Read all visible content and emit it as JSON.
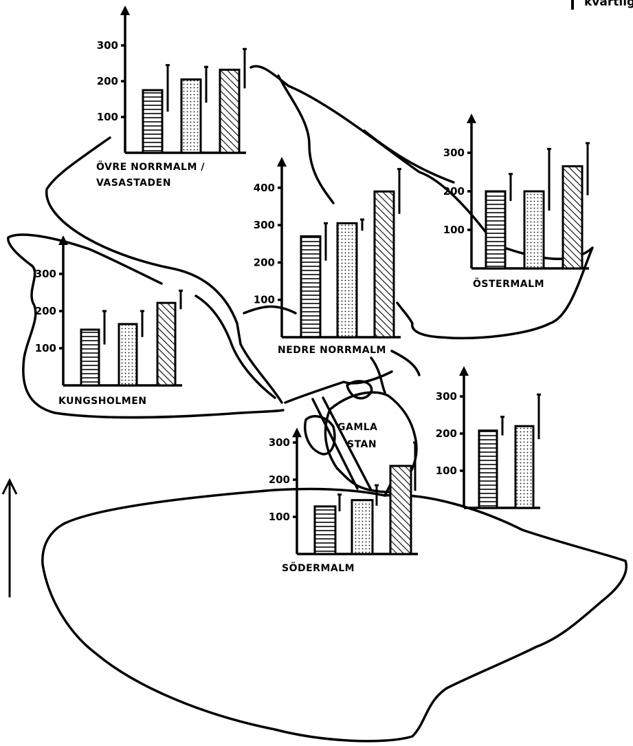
{
  "legend": {
    "text": "kvartilgränser"
  },
  "chart_data": [
    {
      "type": "bar",
      "name_label": "ÖVRE NORRMALM /",
      "name_label2": "VASASTADEN",
      "yticks": [
        100,
        200,
        300
      ],
      "ylim": [
        0,
        340
      ],
      "bars": [
        {
          "pattern": "horizontal-lines",
          "value": 175,
          "q_low": 115,
          "q_high": 245
        },
        {
          "pattern": "dots",
          "value": 205,
          "q_low": 140,
          "q_high": 240
        },
        {
          "pattern": "diagonal-hatch",
          "value": 232,
          "q_low": 180,
          "q_high": 290
        }
      ]
    },
    {
      "type": "bar",
      "name_label": "NEDRE NORRMALM",
      "name_label2": "",
      "yticks": [
        100,
        200,
        300,
        400
      ],
      "ylim": [
        0,
        450
      ],
      "bars": [
        {
          "pattern": "horizontal-lines",
          "value": 270,
          "q_low": 205,
          "q_high": 305
        },
        {
          "pattern": "dots",
          "value": 305,
          "q_low": 285,
          "q_high": 315
        },
        {
          "pattern": "diagonal-hatch",
          "value": 390,
          "q_low": 330,
          "q_high": 450
        }
      ]
    },
    {
      "type": "bar",
      "name_label": "ÖSTERMALM",
      "name_label2": "",
      "yticks": [
        100,
        200,
        300
      ],
      "ylim": [
        0,
        350
      ],
      "bars": [
        {
          "pattern": "horizontal-lines",
          "value": 200,
          "q_low": 175,
          "q_high": 245
        },
        {
          "pattern": "dots",
          "value": 200,
          "q_low": 150,
          "q_high": 310
        },
        {
          "pattern": "diagonal-hatch",
          "value": 265,
          "q_low": 190,
          "q_high": 325
        }
      ]
    },
    {
      "type": "bar",
      "name_label": "KUNGSHOLMEN",
      "name_label2": "",
      "yticks": [
        100,
        200,
        300
      ],
      "ylim": [
        0,
        310
      ],
      "bars": [
        {
          "pattern": "horizontal-lines",
          "value": 150,
          "q_low": 110,
          "q_high": 200
        },
        {
          "pattern": "dots",
          "value": 165,
          "q_low": 130,
          "q_high": 200
        },
        {
          "pattern": "diagonal-hatch",
          "value": 222,
          "q_low": 205,
          "q_high": 255
        }
      ]
    },
    {
      "type": "bar",
      "name_label": "GAMLA",
      "name_label2": "STAN",
      "yticks": [
        100,
        200,
        300
      ],
      "ylim": [
        0,
        320
      ],
      "bars": [
        {
          "pattern": "horizontal-lines",
          "value": 208,
          "q_low": 195,
          "q_high": 245
        },
        {
          "pattern": "dots",
          "value": 220,
          "q_low": 185,
          "q_high": 305
        }
      ]
    },
    {
      "type": "bar",
      "name_label": "SÖDERMALM",
      "name_label2": "",
      "yticks": [
        100,
        200,
        300
      ],
      "ylim": [
        0,
        340
      ],
      "bars": [
        {
          "pattern": "horizontal-lines",
          "value": 128,
          "q_low": 115,
          "q_high": 160
        },
        {
          "pattern": "dots",
          "value": 145,
          "q_low": 130,
          "q_high": 185
        },
        {
          "pattern": "diagonal-hatch",
          "value": 237,
          "q_low": 170,
          "q_high": 300
        }
      ]
    }
  ]
}
